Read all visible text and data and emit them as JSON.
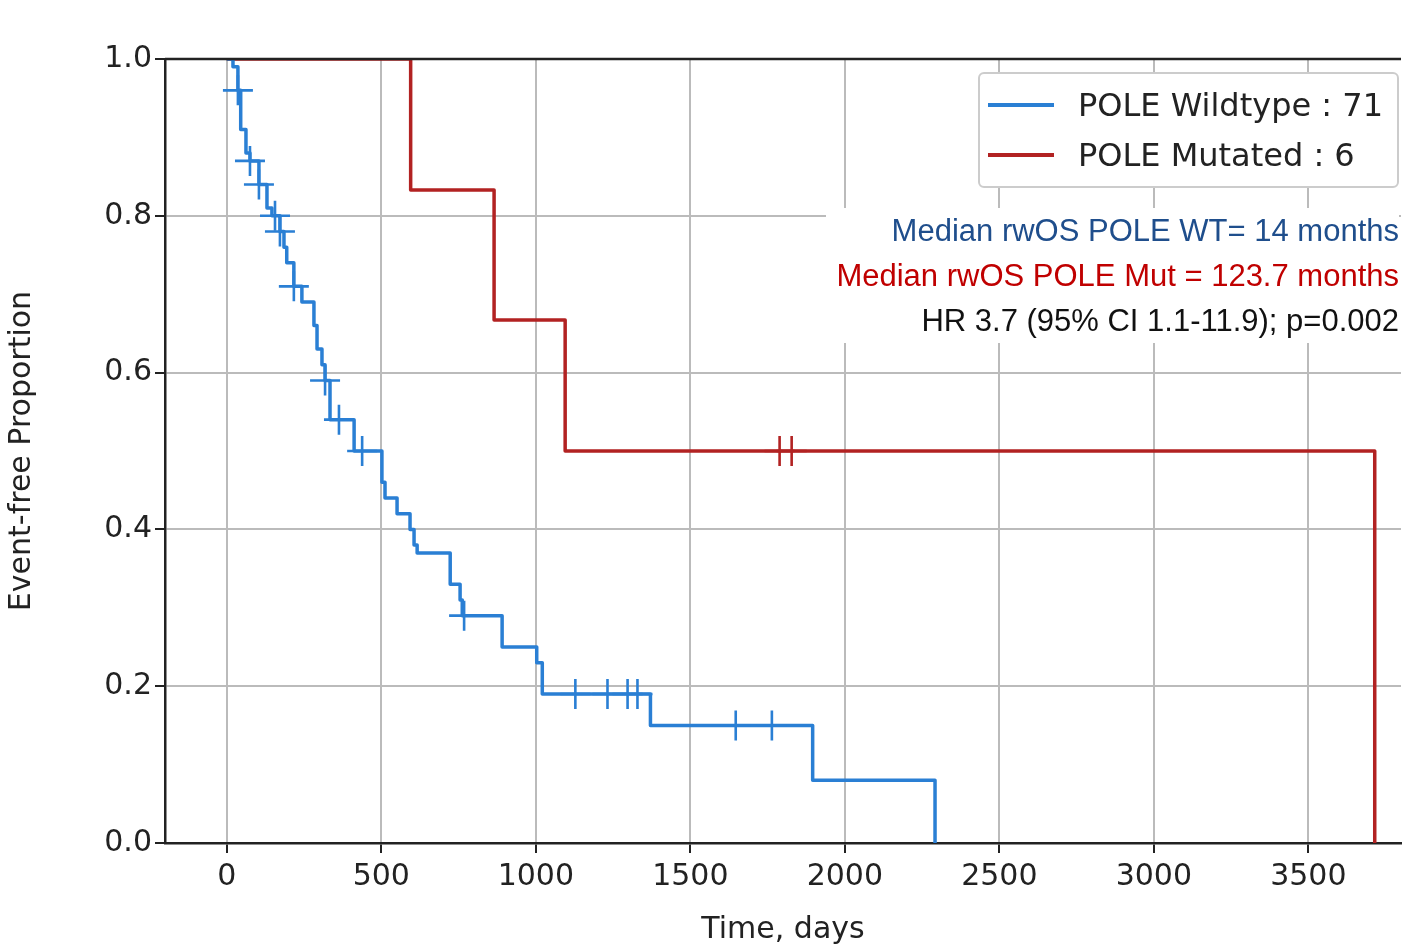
{
  "chart_data": {
    "type": "step",
    "xlabel": "Time, days",
    "ylabel": "Event-free Proportion",
    "xlim": [
      -200,
      3800
    ],
    "xticks": [
      0,
      500,
      1000,
      1500,
      2000,
      2500,
      3000,
      3500
    ],
    "ylim": [
      0,
      1
    ],
    "yticks": [
      {
        "value": 0,
        "label": "0.0"
      },
      {
        "value": 0.2,
        "label": "0.2"
      },
      {
        "value": 0.4,
        "label": "0.4"
      },
      {
        "value": 0.6,
        "label": "0.6"
      },
      {
        "value": 0.8,
        "label": "0.8"
      },
      {
        "value": 1,
        "label": "1.0"
      }
    ],
    "grid": true,
    "legend": "top right",
    "series": [
      {
        "name": "POLE Wildtype : 71",
        "color": "#2a7fd4",
        "marker": "none",
        "x": [
          0,
          20,
          36,
          45,
          62,
          75,
          104,
          130,
          146,
          172,
          185,
          194,
          217,
          243,
          282,
          292,
          308,
          318,
          334,
          412,
          502,
          512,
          551,
          593,
          606,
          616,
          723,
          755,
          762,
          891,
          1003,
          1021,
          1371,
          1896,
          2292
        ],
        "values": [
          1.0,
          0.99,
          0.96,
          0.91,
          0.88,
          0.87,
          0.84,
          0.81,
          0.8,
          0.78,
          0.76,
          0.74,
          0.71,
          0.69,
          0.66,
          0.63,
          0.61,
          0.59,
          0.54,
          0.5,
          0.46,
          0.44,
          0.42,
          0.4,
          0.38,
          0.37,
          0.33,
          0.31,
          0.29,
          0.25,
          0.23,
          0.19,
          0.15,
          0.08,
          0.0
        ]
      },
      {
        "name": "POLE Mutated : 6",
        "color": "#b22222",
        "marker": "none",
        "x": [
          0,
          595,
          865,
          1095,
          3715
        ],
        "values": [
          1.0,
          0.833,
          0.667,
          0.5,
          0.0
        ]
      },
      {
        "color": "#2a7fd4",
        "type": "scatter",
        "marker": "cross",
        "x": [
          36,
          75,
          104,
          156,
          172,
          217,
          318,
          363,
          438,
          768,
          1128,
          1232,
          1297,
          1329,
          1647,
          1764
        ],
        "values": [
          0.96,
          0.87,
          0.84,
          0.8,
          0.78,
          0.71,
          0.59,
          0.54,
          0.5,
          0.29,
          0.19,
          0.19,
          0.19,
          0.19,
          0.15,
          0.15
        ]
      },
      {
        "color": "#b22222",
        "type": "scatter",
        "marker": "cross",
        "x": [
          1789,
          1828
        ],
        "values": [
          0.5,
          0.5
        ]
      }
    ],
    "annotations": [
      "Median rwOS POLE WT= 14 months",
      "Median rwOS POLE Mut = 123.7 months",
      "HR 3.7 (95% CI 1.1-11.9); p=0.002"
    ]
  }
}
